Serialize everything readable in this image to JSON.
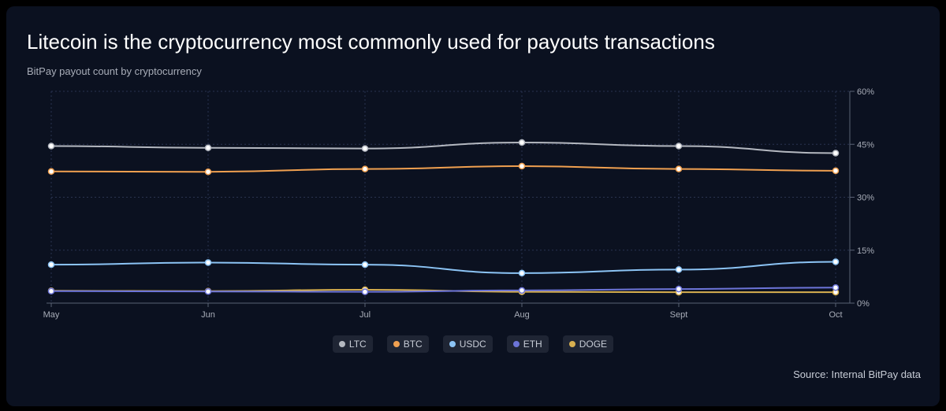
{
  "header": {
    "title": "Litecoin is the cryptocurrency most commonly used for payouts transactions",
    "subtitle": "BitPay payout count by cryptocurrency"
  },
  "footer": {
    "source": "Source: Internal BitPay data"
  },
  "colors": {
    "background": "#0b1120",
    "grid": "#2a3350",
    "axis_text": "#a8adb8"
  },
  "chart_data": {
    "type": "line",
    "title": "Litecoin is the cryptocurrency most commonly used for payouts transactions",
    "subtitle": "BitPay payout count by cryptocurrency",
    "x": [
      "May",
      "Jun",
      "Jul",
      "Aug",
      "Sept",
      "Oct"
    ],
    "ylim": [
      0,
      60
    ],
    "y_ticks": [
      "0%",
      "15%",
      "30%",
      "45%",
      "60%"
    ],
    "y_axis_side": "right",
    "grid": true,
    "legend_position": "bottom",
    "series": [
      {
        "name": "LTC",
        "color": "#b4b8c0",
        "values": [
          44.5,
          44.0,
          43.8,
          45.5,
          44.5,
          42.5
        ]
      },
      {
        "name": "BTC",
        "color": "#f0a050",
        "values": [
          37.3,
          37.2,
          38.0,
          38.8,
          38.0,
          37.5
        ]
      },
      {
        "name": "USDC",
        "color": "#8cc4f5",
        "values": [
          10.9,
          11.5,
          10.9,
          8.5,
          9.5,
          11.7
        ]
      },
      {
        "name": "ETH",
        "color": "#6c74d8",
        "values": [
          3.4,
          3.3,
          3.2,
          3.6,
          4.0,
          4.4
        ]
      },
      {
        "name": "DOGE",
        "color": "#d8b050",
        "values": [
          3.5,
          3.4,
          3.8,
          3.2,
          3.1,
          3.1
        ]
      }
    ]
  }
}
